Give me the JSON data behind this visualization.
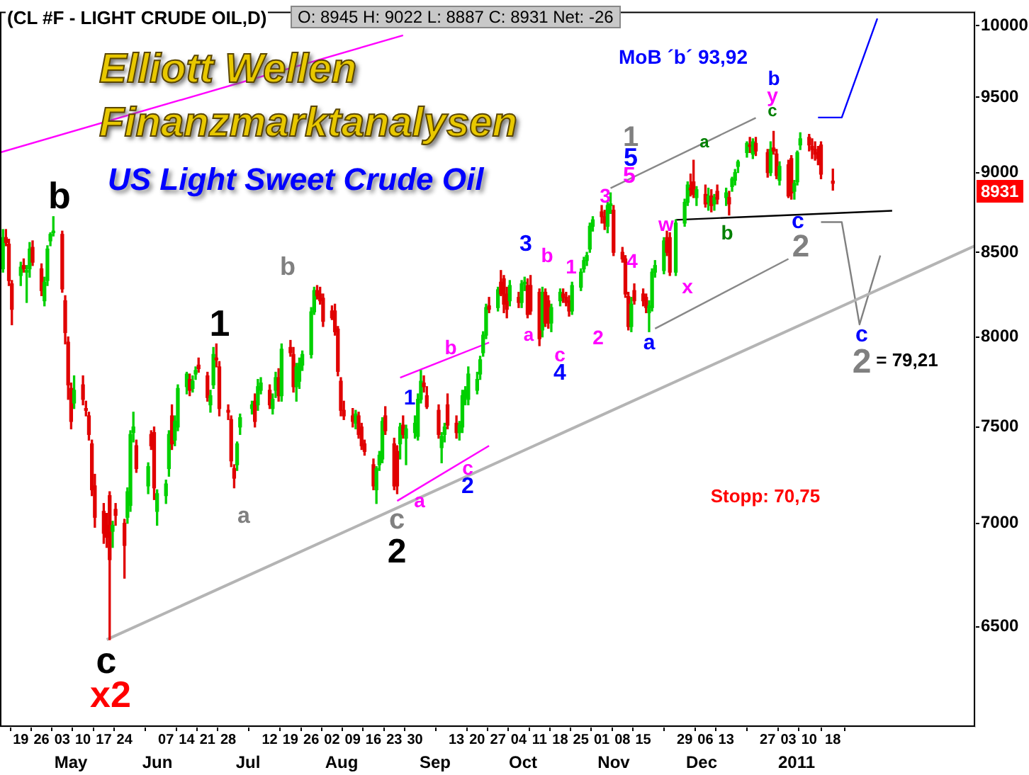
{
  "chart_data": {
    "type": "candlestick",
    "title": "(CL #F - LIGHT CRUDE OIL,D)",
    "subtitle": "Elliott Wellen Finanzmarktanalysen",
    "log": true,
    "legend": false,
    "grid": false,
    "xlim": [
      "2010-04-12",
      "2011-03-07"
    ],
    "ylim": [
      6050,
      10100
    ],
    "yticks": [
      6500,
      7000,
      7500,
      8000,
      8500,
      9000,
      9500,
      10000
    ],
    "xticks": [
      {
        "value": "2010-04-19",
        "label": "19"
      },
      {
        "value": "2010-04-26",
        "label": "26"
      },
      {
        "value": "2010-05-03",
        "label": "03"
      },
      {
        "value": "2010-05-10",
        "label": "10"
      },
      {
        "value": "2010-05-17",
        "label": "17"
      },
      {
        "value": "2010-05-24",
        "label": "24"
      },
      {
        "value": "2010-06-07",
        "label": "07"
      },
      {
        "value": "2010-06-14",
        "label": "14"
      },
      {
        "value": "2010-06-21",
        "label": "21"
      },
      {
        "value": "2010-06-28",
        "label": "28"
      },
      {
        "value": "2010-07-12",
        "label": "12"
      },
      {
        "value": "2010-07-19",
        "label": "19"
      },
      {
        "value": "2010-07-26",
        "label": "26"
      },
      {
        "value": "2010-08-02",
        "label": "02"
      },
      {
        "value": "2010-08-09",
        "label": "09"
      },
      {
        "value": "2010-08-16",
        "label": "16"
      },
      {
        "value": "2010-08-23",
        "label": "23"
      },
      {
        "value": "2010-08-30",
        "label": "30"
      },
      {
        "value": "2010-09-13",
        "label": "13"
      },
      {
        "value": "2010-09-20",
        "label": "20"
      },
      {
        "value": "2010-09-27",
        "label": "27"
      },
      {
        "value": "2010-10-04",
        "label": "04"
      },
      {
        "value": "2010-10-11",
        "label": "11"
      },
      {
        "value": "2010-10-18",
        "label": "18"
      },
      {
        "value": "2010-10-25",
        "label": "25"
      },
      {
        "value": "2010-11-01",
        "label": "01"
      },
      {
        "value": "2010-11-08",
        "label": "08"
      },
      {
        "value": "2010-11-15",
        "label": "15"
      },
      {
        "value": "2010-11-29",
        "label": "29"
      },
      {
        "value": "2010-12-06",
        "label": "06"
      },
      {
        "value": "2010-12-13",
        "label": "13"
      },
      {
        "value": "2010-12-27",
        "label": "27"
      },
      {
        "value": "2011-01-03",
        "label": "03"
      },
      {
        "value": "2011-01-10",
        "label": "10"
      },
      {
        "value": "2011-01-18",
        "label": "18"
      }
    ],
    "x": [
      "2010-04-13",
      "2010-04-14",
      "2010-04-15",
      "2010-04-16",
      "2010-04-19",
      "2010-04-20",
      "2010-04-21",
      "2010-04-22",
      "2010-04-23",
      "2010-04-26",
      "2010-04-27",
      "2010-04-28",
      "2010-04-29",
      "2010-04-30",
      "2010-05-03",
      "2010-05-04",
      "2010-05-05",
      "2010-05-06",
      "2010-05-07",
      "2010-05-10",
      "2010-05-11",
      "2010-05-12",
      "2010-05-13",
      "2010-05-14",
      "2010-05-17",
      "2010-05-18",
      "2010-05-19",
      "2010-05-20",
      "2010-05-21",
      "2010-05-24",
      "2010-05-25",
      "2010-05-26",
      "2010-05-27",
      "2010-05-28",
      "2010-06-01",
      "2010-06-02",
      "2010-06-03",
      "2010-06-04",
      "2010-06-07",
      "2010-06-08",
      "2010-06-09",
      "2010-06-10",
      "2010-06-11",
      "2010-06-14",
      "2010-06-15",
      "2010-06-16",
      "2010-06-17",
      "2010-06-18",
      "2010-06-21",
      "2010-06-22",
      "2010-06-23",
      "2010-06-24",
      "2010-06-25",
      "2010-06-28",
      "2010-06-29",
      "2010-06-30",
      "2010-07-01",
      "2010-07-02",
      "2010-07-06",
      "2010-07-07",
      "2010-07-08",
      "2010-07-09",
      "2010-07-12",
      "2010-07-13",
      "2010-07-14",
      "2010-07-15",
      "2010-07-16",
      "2010-07-19",
      "2010-07-20",
      "2010-07-21",
      "2010-07-22",
      "2010-07-23",
      "2010-07-26",
      "2010-07-27",
      "2010-07-28",
      "2010-07-29",
      "2010-07-30",
      "2010-08-02",
      "2010-08-03",
      "2010-08-04",
      "2010-08-05",
      "2010-08-06",
      "2010-08-09",
      "2010-08-10",
      "2010-08-11",
      "2010-08-12",
      "2010-08-13",
      "2010-08-16",
      "2010-08-17",
      "2010-08-18",
      "2010-08-19",
      "2010-08-20",
      "2010-08-23",
      "2010-08-24",
      "2010-08-25",
      "2010-08-26",
      "2010-08-27",
      "2010-08-30",
      "2010-08-31",
      "2010-09-01",
      "2010-09-02",
      "2010-09-03",
      "2010-09-07",
      "2010-09-08",
      "2010-09-09",
      "2010-09-10",
      "2010-09-13",
      "2010-09-14",
      "2010-09-15",
      "2010-09-16",
      "2010-09-17",
      "2010-09-20",
      "2010-09-21",
      "2010-09-22",
      "2010-09-23",
      "2010-09-24",
      "2010-09-27",
      "2010-09-28",
      "2010-09-29",
      "2010-09-30",
      "2010-10-01",
      "2010-10-04",
      "2010-10-05",
      "2010-10-06",
      "2010-10-07",
      "2010-10-08",
      "2010-10-11",
      "2010-10-12",
      "2010-10-13",
      "2010-10-14",
      "2010-10-15",
      "2010-10-18",
      "2010-10-19",
      "2010-10-20",
      "2010-10-21",
      "2010-10-22",
      "2010-10-25",
      "2010-10-26",
      "2010-10-27",
      "2010-10-28",
      "2010-10-29",
      "2010-11-01",
      "2010-11-02",
      "2010-11-03",
      "2010-11-04",
      "2010-11-05",
      "2010-11-08",
      "2010-11-09",
      "2010-11-10",
      "2010-11-11",
      "2010-11-12",
      "2010-11-15",
      "2010-11-16",
      "2010-11-17",
      "2010-11-18",
      "2010-11-19",
      "2010-11-22",
      "2010-11-23",
      "2010-11-24",
      "2010-11-26",
      "2010-11-29",
      "2010-11-30",
      "2010-12-01",
      "2010-12-02",
      "2010-12-03",
      "2010-12-06",
      "2010-12-07",
      "2010-12-08",
      "2010-12-09",
      "2010-12-10",
      "2010-12-13",
      "2010-12-14",
      "2010-12-15",
      "2010-12-16",
      "2010-12-17",
      "2010-12-20",
      "2010-12-21",
      "2010-12-22",
      "2010-12-23",
      "2010-12-27",
      "2010-12-28",
      "2010-12-29",
      "2010-12-30",
      "2010-12-31",
      "2011-01-03",
      "2011-01-04",
      "2011-01-05",
      "2011-01-06",
      "2011-01-07",
      "2011-01-10",
      "2011-01-11",
      "2011-01-12",
      "2011-01-13",
      "2011-01-14",
      "2011-01-18"
    ],
    "ohlc": [
      [
        8400,
        8640,
        8380,
        8590
      ],
      [
        8590,
        8640,
        8540,
        8560
      ],
      [
        8550,
        8580,
        8300,
        8330
      ],
      [
        8310,
        8330,
        8070,
        8160
      ],
      [
        8360,
        8440,
        8300,
        8410
      ],
      [
        8420,
        8460,
        8380,
        8400
      ],
      [
        8380,
        8420,
        8200,
        8390
      ],
      [
        8400,
        8560,
        8350,
        8520
      ],
      [
        8530,
        8570,
        8420,
        8440
      ],
      [
        8400,
        8430,
        8240,
        8270
      ],
      [
        8210,
        8350,
        8180,
        8320
      ],
      [
        8330,
        8540,
        8300,
        8520
      ],
      [
        8570,
        8620,
        8540,
        8610
      ],
      [
        8620,
        8720,
        8600,
        8630
      ],
      [
        8610,
        8630,
        8260,
        8280
      ],
      [
        8210,
        8240,
        7960,
        8025
      ],
      [
        7970,
        8000,
        7650,
        7730
      ],
      [
        7710,
        7740,
        7490,
        7530
      ],
      [
        7630,
        7780,
        7600,
        7700
      ],
      [
        7730,
        7780,
        7620,
        7650
      ],
      [
        7600,
        7640,
        7560,
        7590
      ],
      [
        7560,
        7580,
        7430,
        7460
      ],
      [
        7410,
        7430,
        7140,
        7170
      ],
      [
        7190,
        7250,
        6980,
        7030
      ],
      [
        7060,
        7100,
        6900,
        6950
      ],
      [
        6990,
        7050,
        6880,
        6930
      ],
      [
        7140,
        7160,
        6440,
        6820
      ],
      [
        6960,
        7010,
        6880,
        6990
      ],
      [
        7070,
        7100,
        6990,
        7040
      ],
      [
        7000,
        7020,
        6730,
        6890
      ],
      [
        7030,
        7180,
        7000,
        7160
      ],
      [
        7090,
        7480,
        7060,
        7460
      ],
      [
        7470,
        7580,
        7420,
        7500
      ],
      [
        7400,
        7430,
        7260,
        7280
      ],
      [
        7190,
        7310,
        7150,
        7290
      ],
      [
        7460,
        7480,
        7380,
        7400
      ],
      [
        7470,
        7500,
        7120,
        7180
      ],
      [
        7060,
        7170,
        6990,
        7150
      ],
      [
        7140,
        7220,
        7100,
        7200
      ],
      [
        7280,
        7480,
        7240,
        7460
      ],
      [
        7560,
        7620,
        7380,
        7410
      ],
      [
        7430,
        7560,
        7400,
        7530
      ],
      [
        7500,
        7730,
        7480,
        7710
      ],
      [
        7720,
        7800,
        7680,
        7790
      ],
      [
        7760,
        7790,
        7670,
        7700
      ],
      [
        7710,
        7780,
        7690,
        7750
      ],
      [
        7790,
        7830,
        7760,
        7810
      ],
      [
        7840,
        7880,
        7800,
        7820
      ],
      [
        7780,
        7800,
        7640,
        7660
      ],
      [
        7620,
        7700,
        7580,
        7670
      ],
      [
        7730,
        7940,
        7710,
        7900
      ],
      [
        7880,
        7960,
        7830,
        7870
      ],
      [
        7830,
        7860,
        7560,
        7600
      ],
      [
        7590,
        7620,
        7540,
        7580
      ],
      [
        7540,
        7560,
        7290,
        7320
      ],
      [
        7280,
        7300,
        7180,
        7230
      ],
      [
        7300,
        7420,
        7270,
        7410
      ],
      [
        7500,
        7570,
        7460,
        7550
      ],
      [
        7600,
        7640,
        7570,
        7620
      ],
      [
        7640,
        7680,
        7500,
        7530
      ],
      [
        7620,
        7760,
        7590,
        7720
      ],
      [
        7700,
        7770,
        7680,
        7740
      ],
      [
        7700,
        7730,
        7600,
        7620
      ],
      [
        7600,
        7680,
        7570,
        7650
      ],
      [
        7700,
        7800,
        7660,
        7770
      ],
      [
        7770,
        7820,
        7640,
        7670
      ],
      [
        7670,
        7960,
        7640,
        7930
      ],
      [
        7940,
        7980,
        7890,
        7910
      ],
      [
        7900,
        7940,
        7690,
        7720
      ],
      [
        7720,
        7850,
        7640,
        7830
      ],
      [
        7750,
        7880,
        7710,
        7850
      ],
      [
        7840,
        7920,
        7810,
        7900
      ],
      [
        7900,
        8170,
        7880,
        8145
      ],
      [
        8145,
        8290,
        8130,
        8270
      ],
      [
        8270,
        8300,
        8220,
        8240
      ],
      [
        8250,
        8290,
        8190,
        8210
      ],
      [
        8225,
        8250,
        8060,
        8090
      ],
      [
        8150,
        8180,
        8100,
        8110
      ],
      [
        8150,
        8190,
        8010,
        8030
      ],
      [
        8045,
        8060,
        7780,
        7805
      ],
      [
        7750,
        7770,
        7560,
        7590
      ],
      [
        7590,
        7640,
        7540,
        7560
      ],
      [
        7560,
        7600,
        7500,
        7530
      ],
      [
        7520,
        7590,
        7490,
        7570
      ],
      [
        7560,
        7580,
        7440,
        7460
      ],
      [
        7500,
        7520,
        7380,
        7400
      ],
      [
        7410,
        7430,
        7350,
        7370
      ],
      [
        7300,
        7330,
        7170,
        7190
      ],
      [
        7170,
        7290,
        7100,
        7280
      ],
      [
        7300,
        7370,
        7270,
        7350
      ],
      [
        7330,
        7550,
        7310,
        7530
      ],
      [
        7560,
        7610,
        7460,
        7480
      ],
      [
        7410,
        7440,
        7170,
        7190
      ],
      [
        7370,
        7400,
        7150,
        7190
      ],
      [
        7410,
        7520,
        7330,
        7500
      ],
      [
        7510,
        7560,
        7440,
        7460
      ],
      [
        7440,
        7510,
        7300,
        7490
      ],
      [
        7470,
        7560,
        7440,
        7520
      ],
      [
        7450,
        7680,
        7430,
        7650
      ],
      [
        7650,
        7810,
        7630,
        7750
      ],
      [
        7740,
        7780,
        7690,
        7720
      ],
      [
        7670,
        7720,
        7600,
        7610
      ],
      [
        7590,
        7620,
        7440,
        7460
      ],
      [
        7390,
        7470,
        7310,
        7450
      ],
      [
        7460,
        7520,
        7420,
        7500
      ],
      [
        7620,
        7680,
        7490,
        7510
      ],
      [
        7520,
        7560,
        7440,
        7470
      ],
      [
        7470,
        7530,
        7430,
        7510
      ],
      [
        7500,
        7700,
        7470,
        7670
      ],
      [
        7660,
        7720,
        7620,
        7700
      ],
      [
        7650,
        7830,
        7620,
        7790
      ],
      [
        7700,
        7800,
        7680,
        7760
      ],
      [
        7790,
        7890,
        7760,
        7870
      ],
      [
        7910,
        8030,
        7890,
        8010
      ],
      [
        8010,
        8190,
        7990,
        8170
      ],
      [
        8180,
        8230,
        8140,
        8160
      ],
      [
        8170,
        8290,
        8150,
        8275
      ],
      [
        8320,
        8390,
        8240,
        8250
      ],
      [
        8340,
        8360,
        8140,
        8190
      ],
      [
        8250,
        8290,
        8110,
        8160
      ],
      [
        8210,
        8330,
        8180,
        8300
      ],
      [
        8230,
        8260,
        8170,
        8200
      ],
      [
        8200,
        8330,
        8170,
        8310
      ],
      [
        8310,
        8350,
        8270,
        8320
      ],
      [
        8300,
        8340,
        8110,
        8130
      ],
      [
        8300,
        8360,
        8130,
        8150
      ],
      [
        8260,
        8280,
        7950,
        7990
      ],
      [
        8040,
        8290,
        8000,
        8260
      ],
      [
        8260,
        8280,
        8060,
        8080
      ],
      [
        8210,
        8240,
        8050,
        8080
      ],
      [
        8080,
        8190,
        8030,
        8170
      ],
      [
        8210,
        8280,
        8180,
        8260
      ],
      [
        8250,
        8280,
        8200,
        8230
      ],
      [
        8230,
        8260,
        8180,
        8200
      ],
      [
        8210,
        8240,
        8120,
        8150
      ],
      [
        8150,
        8320,
        8130,
        8300
      ],
      [
        8290,
        8400,
        8270,
        8380
      ],
      [
        8400,
        8470,
        8380,
        8450
      ],
      [
        8450,
        8500,
        8420,
        8480
      ],
      [
        8520,
        8680,
        8500,
        8660
      ],
      [
        8660,
        8720,
        8630,
        8700
      ],
      [
        8750,
        8790,
        8680,
        8720
      ],
      [
        8720,
        8760,
        8640,
        8680
      ],
      [
        8660,
        8810,
        8620,
        8790
      ],
      [
        8790,
        8870,
        8740,
        8800
      ],
      [
        8760,
        8790,
        8480,
        8500
      ],
      [
        8500,
        8530,
        8440,
        8460
      ],
      [
        8460,
        8480,
        8230,
        8250
      ],
      [
        8235,
        8260,
        8040,
        8060
      ],
      [
        8060,
        8230,
        8030,
        8190
      ],
      [
        8270,
        8310,
        8190,
        8210
      ],
      [
        8250,
        8280,
        8180,
        8210
      ],
      [
        8230,
        8250,
        8140,
        8170
      ],
      [
        8140,
        8210,
        8030,
        8180
      ],
      [
        8170,
        8400,
        8150,
        8380
      ],
      [
        8380,
        8450,
        8350,
        8420
      ],
      [
        8390,
        8590,
        8370,
        8570
      ],
      [
        8590,
        8630,
        8480,
        8500
      ],
      [
        8590,
        8620,
        8360,
        8380
      ],
      [
        8380,
        8700,
        8360,
        8680
      ],
      [
        8680,
        8830,
        8660,
        8810
      ],
      [
        8810,
        8940,
        8790,
        8920
      ],
      [
        8900,
        8990,
        8850,
        8890
      ],
      [
        8940,
        9080,
        8840,
        8860
      ],
      [
        8840,
        8910,
        8790,
        8890
      ],
      [
        8860,
        8920,
        8780,
        8800
      ],
      [
        8810,
        8900,
        8760,
        8850
      ],
      [
        8850,
        8890,
        8750,
        8790
      ],
      [
        8800,
        8860,
        8760,
        8840
      ],
      [
        8880,
        8920,
        8800,
        8830
      ],
      [
        8840,
        8900,
        8790,
        8870
      ],
      [
        8840,
        8880,
        8730,
        8800
      ],
      [
        8910,
        8970,
        8880,
        8960
      ],
      [
        8950,
        9020,
        8920,
        9000
      ],
      [
        9040,
        9080,
        9000,
        9070
      ],
      [
        9130,
        9200,
        9100,
        9190
      ],
      [
        9180,
        9230,
        9130,
        9170
      ],
      [
        9120,
        9220,
        9090,
        9200
      ],
      [
        9190,
        9230,
        9110,
        9140
      ],
      [
        9130,
        9150,
        8970,
        9000
      ],
      [
        9000,
        9200,
        8980,
        9150
      ],
      [
        9160,
        9270,
        9120,
        9140
      ],
      [
        9120,
        9150,
        8960,
        8980
      ],
      [
        8950,
        9070,
        8920,
        9040
      ],
      [
        9050,
        9080,
        8840,
        8850
      ],
      [
        9090,
        9110,
        8830,
        8870
      ],
      [
        8880,
        8950,
        8830,
        8930
      ],
      [
        8940,
        9140,
        8920,
        9130
      ],
      [
        9180,
        9260,
        9150,
        9220
      ],
      [
        9230,
        9250,
        9140,
        9180
      ],
      [
        9170,
        9220,
        9090,
        9150
      ],
      [
        9150,
        9200,
        9080,
        9120
      ],
      [
        9130,
        9170,
        9050,
        9090
      ],
      [
        9180,
        9200,
        8960,
        8990
      ],
      [
        8945,
        9022,
        8887,
        8931
      ]
    ],
    "series": [
      {
        "type": "line",
        "color": "#ff00ff",
        "x": [
          "2010-04-12",
          "2010-08-26"
        ],
        "values": [
          9130,
          9930
        ]
      },
      {
        "type": "line",
        "color": "#b4b4b4",
        "x": [
          "2010-05-18",
          "2011-03-07"
        ],
        "values": [
          6440,
          8540
        ]
      },
      {
        "type": "line",
        "color": "#888888",
        "x": [
          "2010-11-04",
          "2010-12-23"
        ],
        "values": [
          8900,
          9360
        ]
      },
      {
        "type": "line",
        "color": "#888888",
        "x": [
          "2010-11-19",
          "2011-01-03"
        ],
        "values": [
          8048,
          8460
        ]
      },
      {
        "type": "line",
        "color": "#ff00ff",
        "x": [
          "2010-08-25",
          "2010-09-24"
        ],
        "values": [
          7770,
          7968
        ]
      },
      {
        "type": "line",
        "color": "#ff00ff",
        "x": [
          "2010-08-24",
          "2010-09-24"
        ],
        "values": [
          7113,
          7400
        ]
      },
      {
        "type": "line",
        "color": "#000000",
        "x": [
          "2010-11-26",
          "2011-02-07"
        ],
        "values": [
          8700,
          8757
        ]
      },
      {
        "type": "line",
        "color": "#0000ff",
        "x": [
          "2011-01-13",
          "2011-01-21",
          "2011-02-02"
        ],
        "values": [
          9362,
          9362,
          10050
        ]
      },
      {
        "type": "line",
        "color": "#808080",
        "x": [
          "2011-01-14",
          "2011-01-21",
          "2011-01-27",
          "2011-02-03"
        ],
        "values": [
          8686,
          8686,
          8072,
          8481
        ]
      }
    ],
    "annotations": [
      "O: 8945   H: 9022   L: 8887   C: 8931   Net: -26",
      "US Light Sweet Crude Oil",
      "8931",
      "May",
      "Jun",
      "Jul",
      "Aug",
      "Sep",
      "Oct",
      "Nov",
      "Dec",
      "2011",
      "b",
      "1",
      "a",
      "c",
      "x2",
      "b",
      "c",
      "2",
      "1",
      "a",
      "b",
      "c",
      "2",
      "3",
      "a",
      "b",
      "c",
      "4",
      "1",
      "2",
      "3",
      "4",
      "1",
      "5",
      "5",
      "a",
      "w",
      "x",
      "a",
      "b",
      "c",
      "y",
      "b",
      "c",
      "2",
      "c",
      "2",
      "= 79,21",
      "MoB ´b´ 93,92",
      "Stopp: 70,75"
    ]
  }
}
